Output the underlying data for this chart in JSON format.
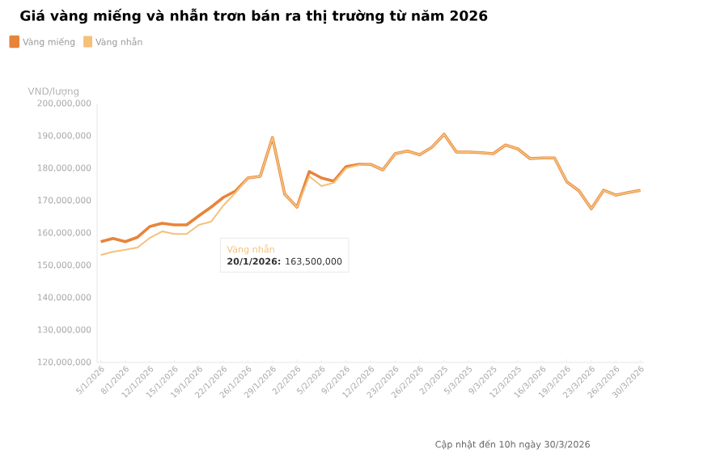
{
  "chart_data": {
    "type": "line",
    "title": "Giá vàng miếng và nhẫn trơn bán ra thị trường từ năm 2026",
    "ylabel": "VND/lượng",
    "categories": [
      "5/1/2026",
      null,
      "8/1/2026",
      null,
      "12/1/2026",
      null,
      "15/1/2026",
      null,
      "19/1/2026",
      null,
      "22/1/2026",
      null,
      "26/1/2026",
      null,
      "29/1/2026",
      null,
      "2/2/2026",
      null,
      "5/2/2026",
      null,
      "9/2/2026",
      null,
      "12/2/2026",
      null,
      "23/2/2026",
      null,
      "26/2/2026",
      null,
      "2/3/2025",
      null,
      "5/3/2025",
      null,
      "9/3/2025",
      null,
      "12/3/2025",
      null,
      "16/3/2026",
      null,
      "19/3/2026",
      null,
      "23/3/2026",
      null,
      "26/3/2026",
      null,
      "30/3/2026"
    ],
    "series": [
      {
        "name": "Vàng miếng",
        "color": "#e8843a",
        "values": [
          157300000,
          158300000,
          157300000,
          158700000,
          162000000,
          163000000,
          162500000,
          162500000,
          165300000,
          168000000,
          171000000,
          173000000,
          177000000,
          177500000,
          189500000,
          172000000,
          168000000,
          179000000,
          177000000,
          176000000,
          180500000,
          181200000,
          181200000,
          179500000,
          184500000,
          185300000,
          184200000,
          186500000,
          190500000,
          185000000,
          185000000,
          184800000,
          184500000,
          187200000,
          186000000,
          183000000,
          183200000,
          183200000,
          175800000,
          173000000,
          167500000,
          173200000,
          171700000,
          172500000,
          173200000
        ]
      },
      {
        "name": "Vàng nhẫn",
        "color": "#f5c07a",
        "values": [
          153200000,
          154200000,
          154800000,
          155500000,
          158500000,
          160500000,
          159700000,
          159700000,
          162500000,
          163500000,
          168500000,
          172500000,
          177000000,
          177500000,
          189500000,
          172000000,
          168000000,
          177500000,
          174500000,
          175500000,
          180000000,
          181000000,
          181200000,
          179500000,
          184500000,
          185300000,
          184200000,
          186500000,
          190500000,
          185000000,
          185000000,
          184800000,
          184500000,
          187200000,
          186000000,
          183000000,
          183200000,
          183200000,
          175800000,
          173000000,
          167500000,
          173200000,
          171700000,
          172500000,
          173200000
        ]
      }
    ],
    "ylim": [
      120000000,
      200000000
    ],
    "yticks": [
      {
        "value": 120000000,
        "label": "120,000,000"
      },
      {
        "value": 130000000,
        "label": "130,000,000"
      },
      {
        "value": 140000000,
        "label": "140,000,000"
      },
      {
        "value": 150000000,
        "label": "150,000,000"
      },
      {
        "value": 160000000,
        "label": "160,000,000"
      },
      {
        "value": 170000000,
        "label": "170,000,000"
      },
      {
        "value": 180000000,
        "label": "180,000,000"
      },
      {
        "value": 190000000,
        "label": "190,000,000"
      },
      {
        "value": 200000000,
        "label": "200,000,000"
      }
    ],
    "legend": "top left",
    "annotations": [
      "Vàng nhẫn",
      "**20/1/2026:** 163,500,000",
      "Cập nhật đến 10h ngày 30/3/2026"
    ]
  }
}
